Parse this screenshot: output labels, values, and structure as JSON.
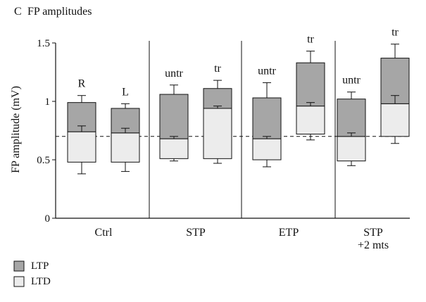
{
  "chart_data": {
    "type": "box",
    "panel_label": "C",
    "title": "FP amplitudes",
    "ylabel": "FP amplitude (mV)",
    "xlabel": "",
    "ylim": [
      0,
      1.5
    ],
    "yticks": [
      0,
      0.5,
      1,
      1.5
    ],
    "ytick_labels": [
      "0",
      "0.5",
      "1",
      "1.5"
    ],
    "reference_line": 0.7,
    "legend_placement": "bottom-left",
    "legend": [
      {
        "label": "LTP",
        "color": "#a6a6a6"
      },
      {
        "label": "LTD",
        "color": "#ececec"
      }
    ],
    "groups": [
      {
        "label": "Ctrl",
        "boxes": [
          {
            "label": "R",
            "ltd_low": 0.48,
            "ltd_low_whisker": 0.38,
            "ltd_high_whisker": 0.74,
            "ltp_high": 0.99,
            "ltp_high_whisker": 1.05,
            "ltp_low_whisker": 0.79
          },
          {
            "label": "L",
            "ltd_low": 0.48,
            "ltd_low_whisker": 0.4,
            "ltd_high_whisker": 0.73,
            "ltp_high": 0.94,
            "ltp_high_whisker": 0.98,
            "ltp_low_whisker": 0.77
          }
        ]
      },
      {
        "label": "STP",
        "boxes": [
          {
            "label": "untr",
            "ltd_low": 0.51,
            "ltd_low_whisker": 0.49,
            "ltd_high_whisker": 0.68,
            "ltp_high": 1.06,
            "ltp_high_whisker": 1.14,
            "ltp_low_whisker": 0.7
          },
          {
            "label": "tr",
            "ltd_low": 0.51,
            "ltd_low_whisker": 0.47,
            "ltd_high_whisker": 0.94,
            "ltp_high": 1.11,
            "ltp_high_whisker": 1.18,
            "ltp_low_whisker": 0.96
          }
        ]
      },
      {
        "label": "ETP",
        "boxes": [
          {
            "label": "untr",
            "ltd_low": 0.5,
            "ltd_low_whisker": 0.44,
            "ltd_high_whisker": 0.68,
            "ltp_high": 1.03,
            "ltp_high_whisker": 1.16,
            "ltp_low_whisker": 0.7
          },
          {
            "label": "tr",
            "ltd_low": 0.72,
            "ltd_low_whisker": 0.67,
            "ltd_high_whisker": 0.96,
            "ltp_high": 1.33,
            "ltp_high_whisker": 1.43,
            "ltp_low_whisker": 0.99
          }
        ]
      },
      {
        "label": "STP\n+2 mts",
        "boxes": [
          {
            "label": "untr",
            "ltd_low": 0.49,
            "ltd_low_whisker": 0.45,
            "ltd_high_whisker": 0.7,
            "ltp_high": 1.02,
            "ltp_high_whisker": 1.08,
            "ltp_low_whisker": 0.73
          },
          {
            "label": "tr",
            "ltd_low": 0.7,
            "ltd_low_whisker": 0.64,
            "ltd_high_whisker": 0.98,
            "ltp_high": 1.37,
            "ltp_high_whisker": 1.49,
            "ltp_low_whisker": 1.05
          }
        ]
      }
    ]
  }
}
